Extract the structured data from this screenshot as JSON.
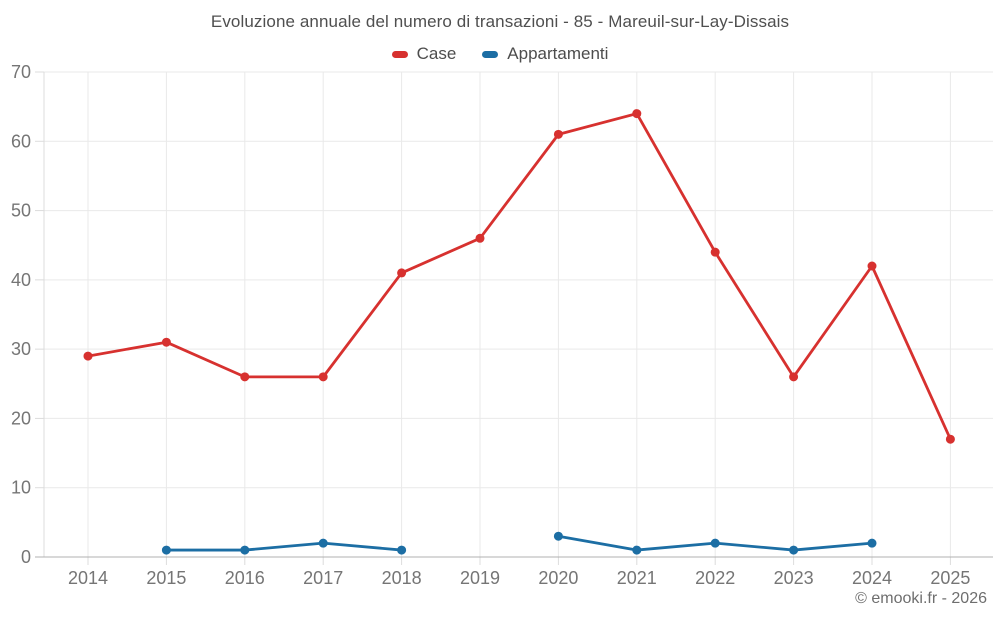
{
  "title": "Evoluzione annuale del numero di transazioni - 85 - Mareuil-sur-Lay-Dissais",
  "attribution": "© emooki.fr - 2026",
  "colors": {
    "case_red": "#d7312f",
    "appartamenti_blue": "#1c6ea4"
  },
  "chart_data": {
    "type": "line",
    "title": "Evoluzione annuale del numero di transazioni - 85 - Mareuil-sur-Lay-Dissais",
    "categories": [
      "2014",
      "2015",
      "2016",
      "2017",
      "2018",
      "2019",
      "2020",
      "2021",
      "2022",
      "2023",
      "2024",
      "2025"
    ],
    "series": [
      {
        "name": "Case",
        "color": "#d7312f",
        "values": [
          29,
          31,
          26,
          26,
          41,
          46,
          61,
          64,
          44,
          26,
          42,
          17
        ]
      },
      {
        "name": "Appartamenti",
        "color": "#1c6ea4",
        "values": [
          null,
          1,
          1,
          2,
          1,
          null,
          3,
          1,
          2,
          1,
          2,
          null
        ]
      }
    ],
    "xlabel": "",
    "ylabel": "",
    "ylim": [
      0,
      70
    ],
    "ytick_step": 10,
    "grid": true,
    "legend_position": "top"
  }
}
